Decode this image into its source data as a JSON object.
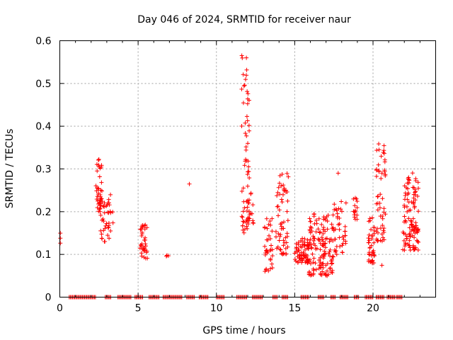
{
  "chart_data": {
    "type": "scatter",
    "title": "Day 046 of 2024, SRMTID for receiver naur",
    "xlabel": "GPS time / hours",
    "ylabel": "SRMTID / TECUs",
    "xlim": [
      0,
      24
    ],
    "ylim": [
      0,
      0.6
    ],
    "xticks": [
      0,
      5,
      10,
      15,
      20
    ],
    "yticks": [
      0,
      0.1,
      0.2,
      0.3,
      0.4,
      0.5,
      0.6
    ],
    "ytick_labels": [
      "0",
      "0.1",
      "0.2",
      "0.3",
      "0.4",
      "0.5",
      "0.6"
    ],
    "grid": true,
    "marker": "+",
    "color": "#ff0000",
    "clusters": [
      {
        "x": [
          0.0,
          0.05
        ],
        "y_min": 0.12,
        "y_max": 0.15,
        "n": 3
      },
      {
        "x": [
          2.3,
          2.7
        ],
        "y_min": 0.2,
        "y_max": 0.33,
        "n": 40
      },
      {
        "x": [
          2.6,
          3.4
        ],
        "y_min": 0.13,
        "y_max": 0.24,
        "n": 40
      },
      {
        "x": [
          5.1,
          5.6
        ],
        "y_min": 0.09,
        "y_max": 0.17,
        "n": 35
      },
      {
        "x": [
          6.8,
          6.95
        ],
        "y_min": 0.09,
        "y_max": 0.1,
        "n": 3
      },
      {
        "x": [
          8.2,
          8.3
        ],
        "y_min": 0.26,
        "y_max": 0.265,
        "n": 1
      },
      {
        "x": [
          11.6,
          12.1
        ],
        "y_min": 0.15,
        "y_max": 0.57,
        "n": 60
      },
      {
        "x": [
          12.0,
          12.4
        ],
        "y_min": 0.17,
        "y_max": 0.25,
        "n": 20
      },
      {
        "x": [
          13.0,
          13.6
        ],
        "y_min": 0.06,
        "y_max": 0.19,
        "n": 35
      },
      {
        "x": [
          13.8,
          14.6
        ],
        "y_min": 0.1,
        "y_max": 0.29,
        "n": 60
      },
      {
        "x": [
          15.0,
          15.9
        ],
        "y_min": 0.08,
        "y_max": 0.14,
        "n": 70
      },
      {
        "x": [
          15.9,
          17.5
        ],
        "y_min": 0.05,
        "y_max": 0.2,
        "n": 140
      },
      {
        "x": [
          17.5,
          18.3
        ],
        "y_min": 0.1,
        "y_max": 0.23,
        "n": 40
      },
      {
        "x": [
          17.6,
          17.8
        ],
        "y_min": 0.29,
        "y_max": 0.295,
        "n": 1
      },
      {
        "x": [
          18.7,
          19.0
        ],
        "y_min": 0.18,
        "y_max": 0.24,
        "n": 15
      },
      {
        "x": [
          19.7,
          20.1
        ],
        "y_min": 0.08,
        "y_max": 0.19,
        "n": 40
      },
      {
        "x": [
          20.2,
          20.8
        ],
        "y_min": 0.13,
        "y_max": 0.36,
        "n": 55
      },
      {
        "x": [
          20.55,
          20.7
        ],
        "y_min": 0.07,
        "y_max": 0.08,
        "n": 1
      },
      {
        "x": [
          21.9,
          22.9
        ],
        "y_min": 0.11,
        "y_max": 0.3,
        "n": 110
      }
    ],
    "zero_segments": [
      [
        0.6,
        2.3
      ],
      [
        2.9,
        3.3
      ],
      [
        3.7,
        4.6
      ],
      [
        4.8,
        5.3
      ],
      [
        5.7,
        6.4
      ],
      [
        6.6,
        7.8
      ],
      [
        8.1,
        8.6
      ],
      [
        8.9,
        9.5
      ],
      [
        10.0,
        10.5
      ],
      [
        11.3,
        12.0
      ],
      [
        12.3,
        13.0
      ],
      [
        13.6,
        13.9
      ],
      [
        14.2,
        14.6
      ],
      [
        15.4,
        15.9
      ],
      [
        16.5,
        16.9
      ],
      [
        17.3,
        17.6
      ],
      [
        17.9,
        18.4
      ],
      [
        18.8,
        19.1
      ],
      [
        19.5,
        20.0
      ],
      [
        20.2,
        20.7
      ],
      [
        20.9,
        21.4
      ],
      [
        21.5,
        21.9
      ]
    ]
  }
}
